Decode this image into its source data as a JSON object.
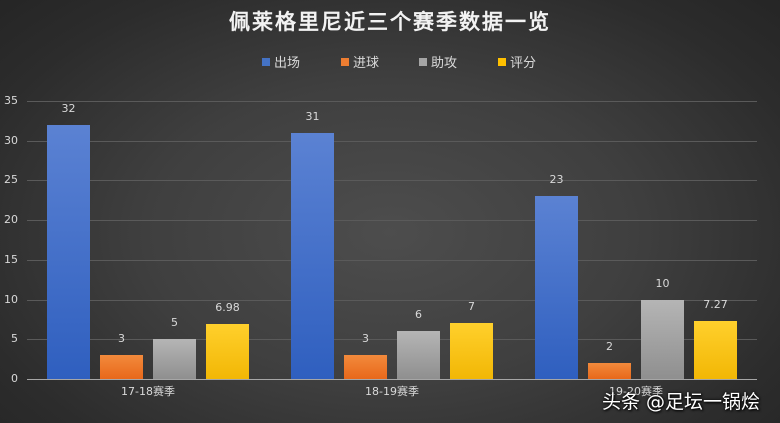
{
  "chart_data": {
    "type": "bar",
    "title": "佩莱格里尼近三个赛季数据一览",
    "categories": [
      "17-18赛季",
      "18-19赛季",
      "19-20赛季"
    ],
    "series": [
      {
        "name": "出场",
        "color": "#4472C4",
        "values": [
          32,
          31,
          23
        ],
        "labels": [
          "32",
          "31",
          "23"
        ]
      },
      {
        "name": "进球",
        "color": "#ED7D31",
        "values": [
          3,
          3,
          2
        ],
        "labels": [
          "3",
          "3",
          "2"
        ]
      },
      {
        "name": "助攻",
        "color": "#A5A5A5",
        "values": [
          5,
          6,
          10
        ],
        "labels": [
          "5",
          "6",
          "10"
        ]
      },
      {
        "name": "评分",
        "color": "#FFC000",
        "values": [
          6.98,
          7,
          7.27
        ],
        "labels": [
          "6.98",
          "7",
          "7.27"
        ]
      }
    ],
    "xlabel": "",
    "ylabel": "",
    "ylim": [
      0,
      35
    ],
    "yticks": [
      "0",
      "5",
      "10",
      "15",
      "20",
      "25",
      "30",
      "35"
    ],
    "grid": true,
    "legend_position": "top"
  },
  "watermark": "头条 @足坛一锅烩"
}
